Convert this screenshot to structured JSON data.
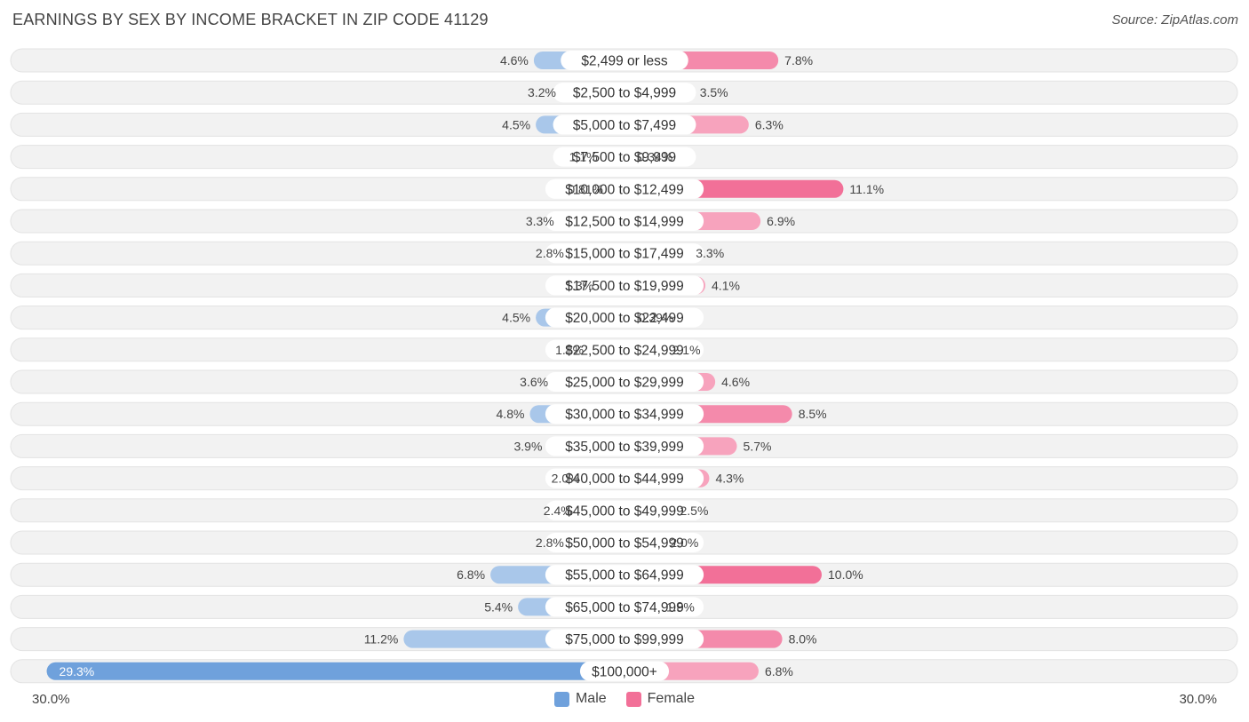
{
  "title": "EARNINGS BY SEX BY INCOME BRACKET IN ZIP CODE 41129",
  "source": "Source: ZipAtlas.com",
  "colors": {
    "male_bar": "#a9c7ea",
    "male_bar_strong": "#6fa1dc",
    "female_bar": "#f7a3bd",
    "female_bar_strong": "#f27098",
    "row_bg": "#f2f2f2",
    "row_border": "#e3e3e3"
  },
  "legend": {
    "male_label": "Male",
    "female_label": "Female"
  },
  "axis": {
    "left_label": "30.0%",
    "right_label": "30.0%"
  },
  "chart_data": {
    "type": "bar",
    "orientation": "horizontal-diverging",
    "title": "EARNINGS BY SEX BY INCOME BRACKET IN ZIP CODE 41129",
    "xlim": [
      0,
      30
    ],
    "categories": [
      "$2,499 or less",
      "$2,500 to $4,999",
      "$5,000 to $7,499",
      "$7,500 to $9,999",
      "$10,000 to $12,499",
      "$12,500 to $14,999",
      "$15,000 to $17,499",
      "$17,500 to $19,999",
      "$20,000 to $22,499",
      "$22,500 to $24,999",
      "$25,000 to $29,999",
      "$30,000 to $34,999",
      "$35,000 to $39,999",
      "$40,000 to $44,999",
      "$45,000 to $49,999",
      "$50,000 to $54,999",
      "$55,000 to $64,999",
      "$65,000 to $74,999",
      "$75,000 to $99,999",
      "$100,000+"
    ],
    "series": [
      {
        "name": "Male",
        "values": [
          4.6,
          3.2,
          4.5,
          1.1,
          0.81,
          3.3,
          2.8,
          1.3,
          4.5,
          1.8,
          3.6,
          4.8,
          3.9,
          2.0,
          2.4,
          2.8,
          6.8,
          5.4,
          11.2,
          29.3
        ],
        "labels": [
          "4.6%",
          "3.2%",
          "4.5%",
          "1.1%",
          "0.81%",
          "3.3%",
          "2.8%",
          "1.3%",
          "4.5%",
          "1.8%",
          "3.6%",
          "4.8%",
          "3.9%",
          "2.0%",
          "2.4%",
          "2.8%",
          "6.8%",
          "5.4%",
          "11.2%",
          "29.3%"
        ]
      },
      {
        "name": "Female",
        "values": [
          7.8,
          3.5,
          6.3,
          0.34,
          11.1,
          6.9,
          3.3,
          4.1,
          0.39,
          2.1,
          4.6,
          8.5,
          5.7,
          4.3,
          2.5,
          2.0,
          10.0,
          1.8,
          8.0,
          6.8
        ],
        "labels": [
          "7.8%",
          "3.5%",
          "6.3%",
          "0.34%",
          "11.1%",
          "6.9%",
          "3.3%",
          "4.1%",
          "0.39%",
          "2.1%",
          "4.6%",
          "8.5%",
          "5.7%",
          "4.3%",
          "2.5%",
          "2.0%",
          "10.0%",
          "1.8%",
          "8.0%",
          "6.8%"
        ]
      }
    ]
  }
}
